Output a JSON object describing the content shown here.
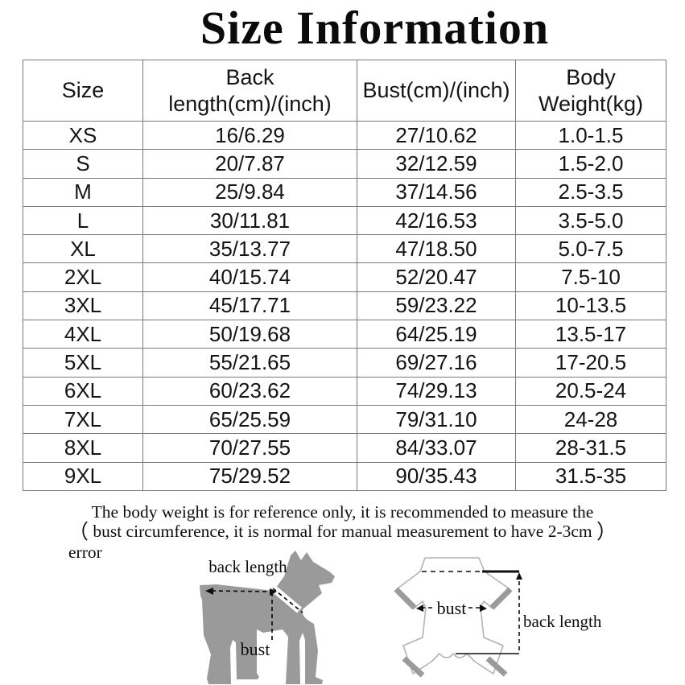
{
  "title": "Size Information",
  "table": {
    "columns": [
      "Size",
      "Back length(cm)/(inch)",
      "Bust(cm)/(inch)",
      "Body Weight(kg)"
    ],
    "rows": [
      [
        "XS",
        "16/6.29",
        "27/10.62",
        "1.0-1.5"
      ],
      [
        "S",
        "20/7.87",
        "32/12.59",
        "1.5-2.0"
      ],
      [
        "M",
        "25/9.84",
        "37/14.56",
        "2.5-3.5"
      ],
      [
        "L",
        "30/11.81",
        "42/16.53",
        "3.5-5.0"
      ],
      [
        "XL",
        "35/13.77",
        "47/18.50",
        "5.0-7.5"
      ],
      [
        "2XL",
        "40/15.74",
        "52/20.47",
        "7.5-10"
      ],
      [
        "3XL",
        "45/17.71",
        "59/23.22",
        "10-13.5"
      ],
      [
        "4XL",
        "50/19.68",
        "64/25.19",
        "13.5-17"
      ],
      [
        "5XL",
        "55/21.65",
        "69/27.16",
        "17-20.5"
      ],
      [
        "6XL",
        "60/23.62",
        "74/29.13",
        "20.5-24"
      ],
      [
        "7XL",
        "65/25.59",
        "79/31.10",
        "24-28"
      ],
      [
        "8XL",
        "70/27.55",
        "84/33.07",
        "28-31.5"
      ],
      [
        "9XL",
        "75/29.52",
        "90/35.43",
        "31.5-35"
      ]
    ]
  },
  "note": {
    "line1": "The body weight is for reference only, it is recommended to measure the",
    "paren_open": "（",
    "line2": "bust circumference, it is normal for manual measurement to have 2-3cm",
    "paren_close": "）",
    "line3": "error"
  },
  "diagrams": {
    "dog": {
      "back_length_label": "back length",
      "bust_label": "bust"
    },
    "garment": {
      "bust_label": "bust",
      "back_length_label": "back length"
    }
  },
  "colors": {
    "table_border": "#7a7a7a",
    "dog_gray": "#9a9a9a",
    "garment_outline": "#b3b3b3",
    "cuff_gray": "#9b9b9b",
    "text": "#111111"
  }
}
